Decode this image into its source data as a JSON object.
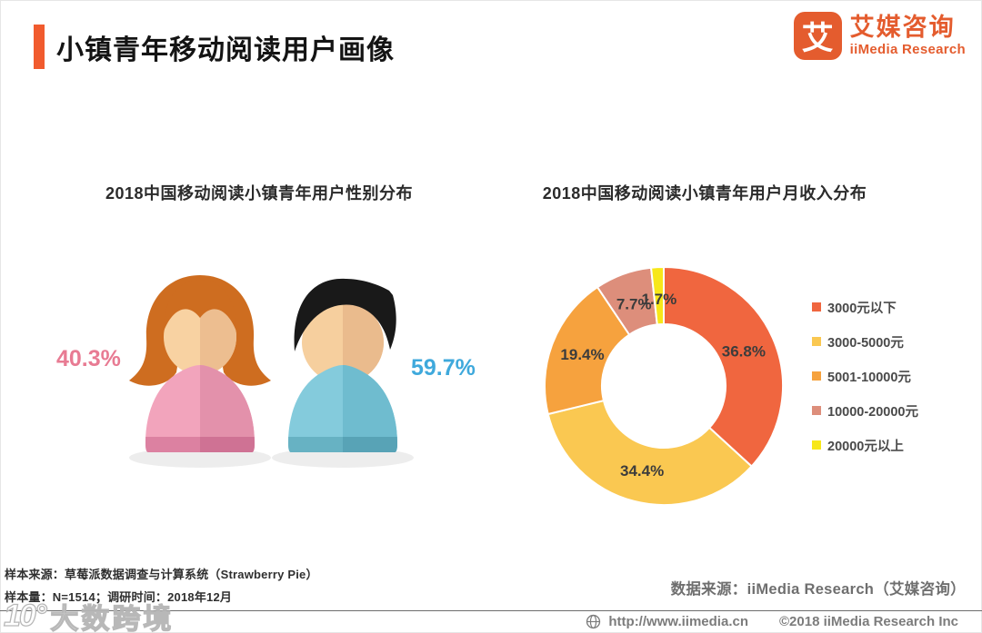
{
  "header": {
    "title": "小镇青年移动阅读用户画像",
    "accent_color": "#F15B2E"
  },
  "logo": {
    "mark": "艾",
    "name_cn": "艾媒咨询",
    "name_en": "iiMedia Research",
    "color": "#E45C2E"
  },
  "chart_data": [
    {
      "type": "pie",
      "subtype": "pictogram",
      "title": "2018中国移动阅读小镇青年用户性别分布",
      "categories": [
        "female",
        "male"
      ],
      "values": [
        40.3,
        59.7
      ],
      "labels": [
        "40.3%",
        "59.7%"
      ],
      "colors": [
        "#E87B93",
        "#3FA9DC"
      ],
      "legend_position": "none"
    },
    {
      "type": "pie",
      "subtype": "donut",
      "title": "2018中国移动阅读小镇青年用户月收入分布",
      "categories": [
        "3000元以下",
        "3000-5000元",
        "5001-10000元",
        "10000-20000元",
        "20000元以上"
      ],
      "values": [
        36.8,
        34.4,
        19.4,
        7.7,
        1.7
      ],
      "labels": [
        "36.8%",
        "34.4%",
        "19.4%",
        "7.7%",
        "1.7%"
      ],
      "colors": [
        "#F0663F",
        "#FAC851",
        "#F6A23E",
        "#DD8E7B",
        "#F7E719"
      ],
      "start_angle_deg": 0,
      "direction": "clockwise",
      "legend_position": "right"
    }
  ],
  "footnotes": {
    "line1": "样本来源：草莓派数据调查与计算系统（Strawberry Pie）",
    "line2": "样本量：N=1514；调研时间：2018年12月"
  },
  "data_source": "数据来源：iiMedia Research（艾媒咨询）",
  "footer": {
    "url": "http://www.iimedia.cn",
    "copyright": "©2018  iiMedia Research  Inc"
  },
  "watermark": {
    "logo": "10°",
    "text": "大数跨境"
  }
}
